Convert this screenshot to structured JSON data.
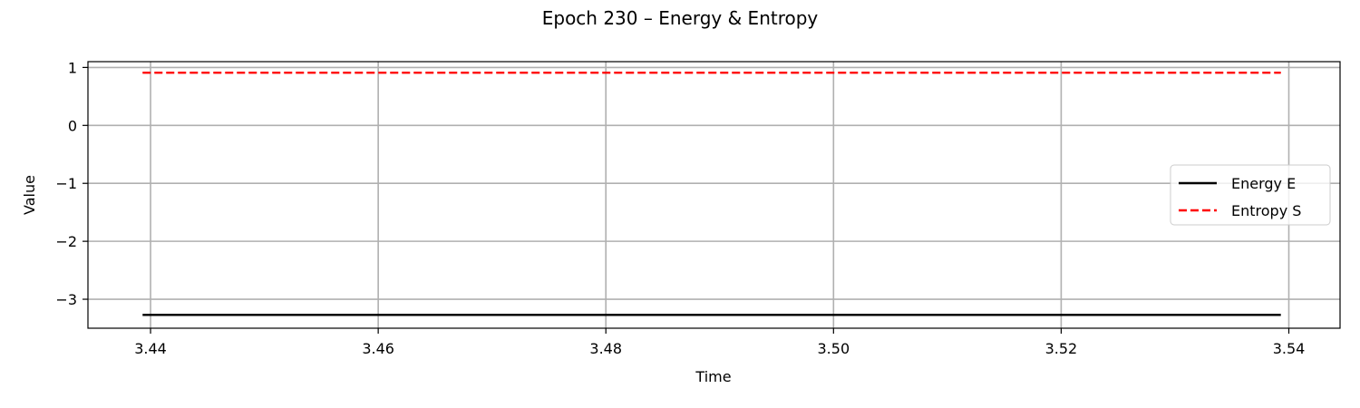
{
  "chart_data": {
    "type": "line",
    "title": "Epoch 230 – Energy & Entropy",
    "xlabel": "Time",
    "ylabel": "Value",
    "xlim": [
      3.4345,
      3.5445
    ],
    "ylim": [
      -3.5,
      1.1
    ],
    "xticks": [
      3.44,
      3.46,
      3.48,
      3.5,
      3.52,
      3.54
    ],
    "xtick_labels": [
      "3.44",
      "3.46",
      "3.48",
      "3.50",
      "3.52",
      "3.54"
    ],
    "yticks": [
      1,
      0,
      -1,
      -2,
      -3
    ],
    "ytick_labels": [
      "1",
      "0",
      "−1",
      "−2",
      "−3"
    ],
    "grid": true,
    "legend_position": "center-right",
    "series": [
      {
        "name": "Energy E",
        "color": "#000000",
        "style": "solid",
        "x": [
          3.4393,
          3.5393
        ],
        "y": [
          -3.27,
          -3.27
        ]
      },
      {
        "name": "Entropy S",
        "color": "#ff0000",
        "style": "dashed",
        "x": [
          3.4393,
          3.5393
        ],
        "y": [
          0.91,
          0.91
        ]
      }
    ]
  }
}
